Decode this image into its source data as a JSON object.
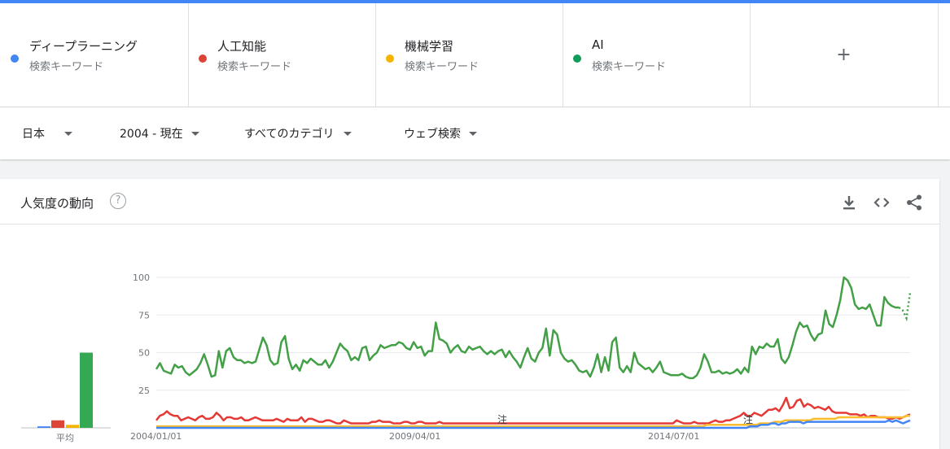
{
  "terms": [
    {
      "name": "ディープラーニング",
      "sub": "検索キーワード",
      "color": "#4285f4"
    },
    {
      "name": "人工知能",
      "sub": "検索キーワード",
      "color": "#db4437"
    },
    {
      "name": "機械学習",
      "sub": "検索キーワード",
      "color": "#f4b400"
    },
    {
      "name": "AI",
      "sub": "検索キーワード",
      "color": "#0f9d58"
    }
  ],
  "add_label": "+",
  "filters": {
    "region": "日本",
    "period": "2004 - 現在",
    "category": "すべてのカテゴリ",
    "search_type": "ウェブ検索"
  },
  "card": {
    "title": "人気度の動向",
    "help_glyph": "?",
    "icons": [
      "download-icon",
      "embed-code-icon",
      "share-icon"
    ]
  },
  "chart_data": {
    "type": "line",
    "ylim": [
      0,
      100
    ],
    "yticks": [
      100,
      75,
      50,
      25
    ],
    "xtick_labels": [
      "2004/01/01",
      "2009/04/01",
      "2014/07/01"
    ],
    "avg_label": "平均",
    "note_label": "注",
    "averages": [
      {
        "name": "ディープラーニング",
        "color": "#4285f4",
        "value": 1
      },
      {
        "name": "人工知能",
        "color": "#db4437",
        "value": 5
      },
      {
        "name": "機械学習",
        "color": "#f4b400",
        "value": 2
      },
      {
        "name": "AI",
        "color": "#34a853",
        "value": 50
      }
    ],
    "series": [
      {
        "name": "AI",
        "color": "#43a047",
        "values": [
          39,
          43,
          38,
          37,
          36,
          42,
          40,
          41,
          37,
          35,
          37,
          39,
          43,
          49,
          42,
          34,
          35,
          51,
          40,
          51,
          53,
          47,
          45,
          45,
          43,
          44,
          43,
          44,
          52,
          60,
          55,
          45,
          42,
          43,
          57,
          61,
          46,
          39,
          42,
          38,
          45,
          43,
          46,
          44,
          42,
          42,
          45,
          40,
          44,
          50,
          56,
          53,
          51,
          45,
          47,
          45,
          53,
          54,
          45,
          48,
          50,
          55,
          53,
          54,
          55,
          55,
          57,
          56,
          53,
          52,
          57,
          53,
          54,
          48,
          51,
          51,
          70,
          59,
          58,
          56,
          50,
          53,
          55,
          51,
          50,
          54,
          52,
          53,
          54,
          51,
          49,
          51,
          49,
          51,
          52,
          47,
          51,
          47,
          44,
          40,
          47,
          53,
          46,
          44,
          50,
          53,
          66,
          48,
          65,
          62,
          50,
          46,
          44,
          45,
          42,
          38,
          37,
          38,
          34,
          40,
          49,
          37,
          47,
          38,
          57,
          60,
          40,
          37,
          41,
          37,
          50,
          43,
          41,
          39,
          40,
          37,
          40,
          44,
          37,
          36,
          35,
          35,
          35,
          36,
          34,
          33,
          33,
          35,
          40,
          49,
          44,
          37,
          37,
          38,
          36,
          37,
          36,
          37,
          39,
          36,
          40,
          37,
          54,
          49,
          54,
          53,
          56,
          54,
          54,
          59,
          46,
          43,
          47,
          55,
          64,
          70,
          67,
          68,
          62,
          58,
          62,
          63,
          78,
          69,
          67,
          75,
          85,
          100,
          98,
          93,
          82,
          79,
          80,
          79,
          82,
          75,
          68,
          68,
          87,
          83,
          81,
          80,
          80,
          78,
          73,
          90
        ],
        "dotted_tail": 3
      },
      {
        "name": "人工知能",
        "color": "#e53935",
        "values": [
          5,
          8,
          9,
          11,
          9,
          8,
          8,
          5,
          6,
          7,
          6,
          5,
          7,
          8,
          6,
          6,
          7,
          10,
          8,
          5,
          7,
          7,
          6,
          6,
          7,
          5,
          5,
          6,
          7,
          6,
          5,
          5,
          5,
          5,
          6,
          5,
          4,
          6,
          5,
          5,
          5,
          7,
          4,
          6,
          6,
          5,
          4,
          4,
          5,
          5,
          4,
          3,
          3,
          5,
          4,
          3,
          3,
          3,
          3,
          3,
          3,
          4,
          4,
          5,
          4,
          4,
          4,
          3,
          3,
          3,
          4,
          4,
          3,
          3,
          4,
          4,
          3,
          3,
          3,
          3,
          4,
          3,
          3,
          3,
          3,
          3,
          3,
          3,
          3,
          3,
          3,
          3,
          3,
          3,
          3,
          3,
          3,
          3,
          3,
          3,
          3,
          3,
          3,
          3,
          3,
          3,
          3,
          3,
          3,
          3,
          3,
          3,
          3,
          3,
          3,
          3,
          3,
          3,
          3,
          3,
          3,
          3,
          3,
          3,
          3,
          3,
          3,
          3,
          3,
          3,
          3,
          3,
          3,
          3,
          3,
          3,
          3,
          3,
          3,
          3,
          3,
          3,
          3,
          3,
          3,
          3,
          3,
          5,
          4,
          3,
          3,
          3,
          4,
          3,
          3,
          3,
          3,
          4,
          5,
          4,
          4,
          5,
          5,
          6,
          7,
          8,
          10,
          8,
          8,
          10,
          9,
          8,
          10,
          12,
          12,
          13,
          11,
          15,
          20,
          13,
          14,
          18,
          19,
          14,
          16,
          15,
          13,
          14,
          13,
          12,
          14,
          11,
          10,
          10,
          10,
          10,
          9,
          9,
          9,
          8,
          9,
          7,
          8,
          8,
          7,
          7,
          7,
          6,
          6,
          7,
          6,
          7,
          8,
          9
        ]
      },
      {
        "name": "機械学習",
        "color": "#f9bc2c",
        "values": [
          1,
          1,
          1,
          1,
          1,
          1,
          1,
          1,
          1,
          1,
          1,
          1,
          1,
          1,
          1,
          1,
          1,
          1,
          1,
          1,
          1,
          1,
          1,
          1,
          1,
          1,
          1,
          1,
          1,
          1,
          1,
          1,
          1,
          1,
          1,
          1,
          1,
          1,
          1,
          1,
          1,
          1,
          1,
          1,
          1,
          1,
          1,
          1,
          1,
          1,
          1,
          1,
          1,
          1,
          1,
          1,
          1,
          1,
          1,
          1,
          1,
          1,
          1,
          1,
          1,
          1,
          1,
          1,
          1,
          1,
          1,
          1,
          1,
          1,
          1,
          1,
          1,
          1,
          1,
          1,
          1,
          1,
          1,
          1,
          1,
          1,
          1,
          1,
          1,
          1,
          1,
          1,
          1,
          1,
          1,
          1,
          1,
          1,
          1,
          1,
          1,
          1,
          1,
          1,
          1,
          1,
          1,
          1,
          1,
          1,
          1,
          1,
          1,
          1,
          1,
          1,
          1,
          1,
          1,
          1,
          1,
          1,
          1,
          1,
          1,
          1,
          1,
          1,
          1,
          1,
          1,
          1,
          1,
          1,
          1,
          1,
          1,
          1,
          1,
          1,
          1,
          1,
          1,
          1,
          1,
          1,
          1,
          1,
          1,
          1,
          1,
          1,
          1,
          1,
          2,
          2,
          2,
          2,
          2,
          2,
          2,
          2,
          2,
          2,
          2,
          2,
          2,
          2,
          2,
          3,
          3,
          3,
          3,
          4,
          4,
          4,
          5,
          5,
          5,
          5,
          5,
          5,
          5,
          5,
          6,
          6,
          6,
          6,
          6,
          6,
          6,
          7,
          7,
          7,
          7,
          7,
          7,
          7,
          7,
          7,
          7,
          7,
          7,
          7,
          7,
          7,
          7,
          7,
          7,
          7,
          8,
          8
        ]
      },
      {
        "name": "ディープラーニング",
        "color": "#4285f4",
        "values": [
          0,
          0,
          0,
          0,
          0,
          0,
          0,
          0,
          0,
          0,
          0,
          0,
          0,
          0,
          0,
          0,
          0,
          0,
          0,
          0,
          0,
          0,
          0,
          0,
          0,
          0,
          0,
          0,
          0,
          0,
          0,
          0,
          0,
          0,
          0,
          0,
          0,
          0,
          0,
          0,
          0,
          0,
          0,
          0,
          0,
          0,
          0,
          0,
          0,
          0,
          0,
          0,
          0,
          0,
          0,
          0,
          0,
          0,
          0,
          0,
          0,
          0,
          0,
          0,
          0,
          0,
          0,
          0,
          0,
          0,
          0,
          0,
          0,
          0,
          0,
          0,
          0,
          0,
          0,
          0,
          0,
          0,
          0,
          0,
          0,
          0,
          0,
          0,
          0,
          0,
          0,
          0,
          0,
          0,
          0,
          0,
          0,
          0,
          0,
          0,
          0,
          0,
          0,
          0,
          0,
          0,
          0,
          0,
          0,
          0,
          0,
          0,
          0,
          0,
          0,
          0,
          0,
          0,
          0,
          0,
          0,
          0,
          0,
          0,
          0,
          0,
          0,
          0,
          0,
          0,
          0,
          0,
          0,
          0,
          0,
          0,
          0,
          0,
          0,
          0,
          0,
          0,
          0,
          0,
          0,
          0,
          0,
          0,
          0,
          0,
          0,
          0,
          0,
          0,
          0,
          0,
          0,
          0,
          0,
          0,
          0,
          0,
          0,
          0,
          0,
          0,
          0,
          1,
          1,
          1,
          2,
          2,
          2,
          3,
          3,
          2,
          3,
          3,
          4,
          4,
          4,
          4,
          3,
          4,
          4,
          4,
          4,
          4,
          4,
          4,
          4,
          4,
          4,
          4,
          4,
          4,
          4,
          4,
          4,
          4,
          4,
          4,
          4,
          4,
          4,
          4,
          5,
          4,
          5,
          4,
          3,
          4,
          5
        ]
      }
    ]
  }
}
